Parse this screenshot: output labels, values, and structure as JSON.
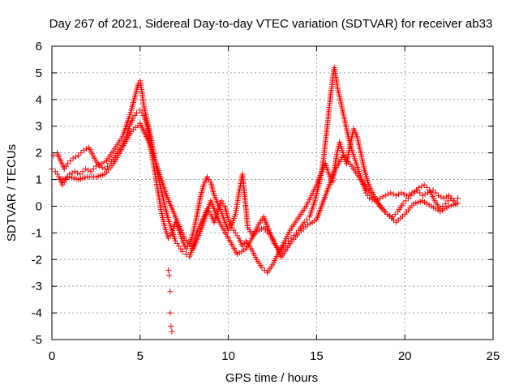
{
  "chart_data": {
    "type": "scatter",
    "title": "Day 267 of 2021, Sidereal Day-to-day VTEC variation (SDTVAR) for receiver ab33",
    "xlabel": "GPS time / hours",
    "ylabel": "SDTVAR / TECUs",
    "xlim": [
      0,
      25
    ],
    "ylim": [
      -5,
      6
    ],
    "xticks": [
      "0",
      "5",
      "10",
      "15",
      "20",
      "25"
    ],
    "yticks": [
      "6",
      "5",
      "4",
      "3",
      "2",
      "1",
      "0",
      "-1",
      "-2",
      "-3",
      "-4",
      "-5"
    ],
    "grid": true,
    "marker": "plus",
    "series": [
      {
        "name": "ab33",
        "color": "#ff0000",
        "tracks": [
          {
            "x": [
              0.0,
              0.2,
              0.4,
              0.6,
              0.8,
              1.0,
              1.3,
              1.6,
              1.9,
              2.2,
              2.5,
              2.8,
              3.1,
              3.4,
              3.7,
              4.0,
              4.3,
              4.5,
              4.7,
              4.9,
              5.0,
              5.1,
              5.2,
              5.4,
              5.6,
              5.8,
              6.0,
              6.2,
              6.4,
              6.6,
              6.8,
              7.0,
              7.2,
              7.4,
              7.6,
              7.8,
              8.0,
              8.2,
              8.4,
              8.6,
              8.8,
              9.0,
              9.2,
              9.4,
              9.6,
              9.8,
              10.0,
              10.2,
              10.4,
              10.6,
              10.8,
              11.0,
              11.3,
              11.6,
              11.9,
              12.2,
              12.5,
              12.8,
              13.1,
              13.4,
              13.7,
              14.0,
              14.3,
              14.6,
              14.9,
              15.2,
              15.4,
              15.6,
              15.8,
              16.0,
              16.2,
              16.4,
              16.6,
              16.8,
              17.0,
              17.2,
              17.4,
              17.6,
              17.8,
              18.0,
              18.3,
              18.6,
              18.9,
              19.2,
              19.5,
              19.8,
              20.1,
              20.4,
              20.7,
              21.0,
              21.3,
              21.6,
              21.9,
              22.2,
              22.5,
              22.8,
              23.0
            ],
            "y": [
              1.4,
              1.3,
              1.1,
              0.8,
              1.0,
              1.2,
              1.3,
              1.2,
              1.4,
              1.3,
              1.5,
              1.6,
              1.7,
              2.0,
              2.3,
              2.6,
              3.2,
              3.6,
              4.1,
              4.6,
              4.7,
              4.3,
              3.8,
              3.2,
              2.6,
              1.9,
              1.2,
              0.6,
              0.0,
              -0.5,
              -0.9,
              -1.3,
              -1.5,
              -1.7,
              -1.8,
              -1.9,
              -1.5,
              -1.0,
              -0.7,
              -0.4,
              -0.1,
              -0.3,
              -0.6,
              -0.2,
              0.2,
              0.0,
              -0.5,
              -0.8,
              -1.0,
              -1.2,
              -1.5,
              -1.3,
              -1.6,
              -2.0,
              -2.3,
              -2.5,
              -2.2,
              -1.8,
              -1.5,
              -1.3,
              -1.1,
              -0.9,
              -0.6,
              -0.4,
              0.2,
              1.0,
              1.8,
              3.0,
              4.2,
              5.2,
              4.4,
              3.8,
              3.2,
              2.6,
              2.1,
              1.7,
              1.3,
              0.9,
              0.5,
              0.3,
              0.2,
              0.3,
              0.4,
              0.5,
              0.4,
              0.5,
              0.4,
              0.5,
              0.6,
              0.4,
              0.5,
              0.6,
              0.4,
              0.3,
              0.4,
              0.2,
              0.3
            ]
          },
          {
            "x": [
              0.1,
              0.3,
              0.5,
              0.7,
              0.9,
              1.2,
              1.5,
              1.8,
              2.1,
              2.4,
              2.7,
              3.0,
              3.3,
              3.6,
              3.9,
              4.2,
              4.4,
              4.6,
              4.8,
              5.0,
              5.2,
              5.4,
              5.6,
              5.8,
              6.0,
              6.2,
              6.4,
              6.6,
              6.8,
              7.0,
              7.2,
              7.4,
              7.6,
              7.8,
              8.0,
              8.2,
              8.4,
              8.6,
              8.8,
              9.0,
              9.2,
              9.4,
              9.6,
              9.8,
              10.0,
              10.2,
              10.4,
              10.6,
              10.8,
              11.1,
              11.4,
              11.7,
              12.0,
              12.3,
              12.6,
              12.9,
              13.2,
              13.5,
              13.8,
              14.1,
              14.4,
              14.7,
              15.0,
              15.3,
              15.5,
              15.7,
              15.9,
              16.1,
              16.3,
              16.5,
              16.7,
              16.9,
              17.1,
              17.3,
              17.5,
              17.7,
              17.9,
              18.1,
              18.4,
              18.7,
              19.0,
              19.3,
              19.6,
              19.9,
              20.2,
              20.5,
              20.8,
              21.1,
              21.4,
              21.7,
              22.0,
              22.3,
              22.6,
              22.9
            ],
            "y": [
              1.9,
              2.0,
              1.7,
              1.4,
              1.6,
              1.8,
              1.9,
              2.1,
              2.2,
              1.8,
              1.5,
              1.4,
              1.6,
              1.9,
              2.2,
              2.6,
              3.0,
              3.3,
              3.5,
              3.6,
              3.4,
              3.0,
              2.2,
              1.4,
              0.6,
              -0.2,
              -0.8,
              -1.2,
              -1.0,
              -0.6,
              -0.9,
              -1.3,
              -1.6,
              -1.4,
              -1.0,
              -0.4,
              0.3,
              0.8,
              1.1,
              0.9,
              0.4,
              0.1,
              -0.2,
              -0.6,
              -0.9,
              -0.7,
              -0.3,
              0.5,
              1.2,
              -0.8,
              -1.1,
              -0.7,
              -0.4,
              -0.9,
              -1.4,
              -1.7,
              -1.3,
              -0.9,
              -0.6,
              -0.3,
              0.0,
              0.4,
              0.8,
              1.3,
              1.6,
              1.2,
              0.9,
              1.8,
              2.4,
              2.0,
              1.6,
              2.3,
              2.9,
              2.6,
              2.0,
              1.4,
              0.9,
              0.6,
              0.2,
              -0.1,
              -0.3,
              -0.4,
              -0.2,
              0.1,
              0.3,
              0.5,
              0.7,
              0.8,
              0.6,
              0.2,
              -0.1,
              0.1,
              0.3,
              0.1
            ]
          },
          {
            "x": [
              0.5,
              1.0,
              1.5,
              2.0,
              2.5,
              3.0,
              3.5,
              4.0,
              4.5,
              5.0,
              5.5,
              6.0,
              6.5,
              7.0,
              7.5,
              8.0,
              8.5,
              9.0,
              9.5,
              10.0,
              10.5,
              11.0,
              11.5,
              12.0,
              12.5,
              13.0,
              13.5,
              14.0,
              14.5,
              15.0,
              15.5,
              16.0,
              16.5,
              17.0,
              17.5,
              18.0,
              18.5,
              19.0,
              19.5,
              20.0,
              20.5,
              21.0,
              21.5,
              22.0,
              22.5,
              23.0
            ],
            "y": [
              1.0,
              1.1,
              1.0,
              1.1,
              1.1,
              1.2,
              1.6,
              2.2,
              2.8,
              3.1,
              2.4,
              1.4,
              0.4,
              -0.4,
              -1.2,
              -1.6,
              -0.8,
              0.2,
              -0.6,
              -1.2,
              -1.8,
              -1.6,
              -1.0,
              -0.8,
              -1.2,
              -1.9,
              -1.4,
              -1.0,
              -0.7,
              -0.5,
              0.4,
              1.3,
              1.9,
              1.5,
              1.0,
              0.5,
              0.1,
              -0.3,
              -0.6,
              -0.3,
              0.1,
              0.2,
              0.0,
              -0.2,
              0.0,
              0.1
            ]
          }
        ],
        "outliers": {
          "x": [
            6.6,
            6.65,
            6.7,
            6.7,
            6.75,
            6.8
          ],
          "y": [
            -2.4,
            -2.6,
            -3.2,
            -4.0,
            -4.5,
            -4.7
          ]
        }
      }
    ]
  }
}
